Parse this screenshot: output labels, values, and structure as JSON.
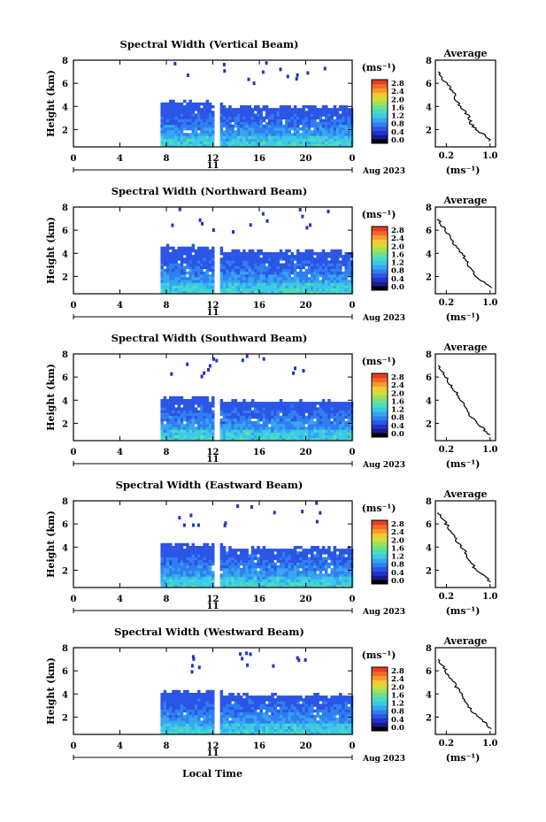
{
  "figure": {
    "bottom_xlabel": "Local Time",
    "date_label": "Aug 2023",
    "day_label": "11",
    "colorbar_unit": "(ms⁻¹)",
    "avg_title": "Average",
    "avg_xlabel": "(ms⁻¹)",
    "ylabel": "Height (km)"
  },
  "colors": {
    "colormap": [
      "#000000",
      "#1a1a8c",
      "#2332c8",
      "#2a55e6",
      "#2f7ef0",
      "#35a6f0",
      "#3cc8e6",
      "#48dcc0",
      "#6ee08c",
      "#a0e05a",
      "#d2dc3c",
      "#f5c832",
      "#f59a2d",
      "#f06a28",
      "#e63c23"
    ]
  },
  "chart_data": [
    {
      "type": "heatmap",
      "title": "Spectral Width (Vertical Beam)",
      "xticks": [
        "0",
        "4",
        "8",
        "12",
        "16",
        "20",
        "0"
      ],
      "xlim": [
        0,
        24
      ],
      "yticks": [
        "2",
        "4",
        "6",
        "8"
      ],
      "ylim": [
        0.5,
        8
      ],
      "colorbar_ticks": [
        "0.0",
        "0.4",
        "0.8",
        "1.2",
        "1.6",
        "2.0",
        "2.4",
        "2.8"
      ],
      "colorbar_range": [
        0,
        3.0
      ],
      "data_start_hour": 7.5,
      "gap_hours": [
        12.35,
        12.6
      ],
      "top_height_km": 4.1,
      "avg": {
        "xticks": [
          "0.2",
          "1.0"
        ],
        "xlim": [
          0,
          1.1
        ],
        "yticks": [
          "2",
          "4",
          "6",
          "8"
        ],
        "ylim": [
          0.5,
          8
        ],
        "height": [
          1.0,
          1.5,
          2.0,
          2.5,
          3.0,
          3.5,
          4.0,
          4.5,
          5.0,
          5.5,
          6.0,
          6.5,
          7.0
        ],
        "width": [
          1.0,
          0.9,
          0.75,
          0.65,
          0.62,
          0.55,
          0.45,
          0.38,
          0.35,
          0.28,
          0.2,
          0.12,
          0.05
        ]
      }
    },
    {
      "type": "heatmap",
      "title": "Spectral Width (Northward Beam)",
      "xticks": [
        "0",
        "4",
        "8",
        "12",
        "16",
        "20",
        "0"
      ],
      "xlim": [
        0,
        24
      ],
      "yticks": [
        "2",
        "4",
        "6",
        "8"
      ],
      "ylim": [
        0.5,
        8
      ],
      "colorbar_ticks": [
        "0.0",
        "0.4",
        "0.8",
        "1.2",
        "1.6",
        "2.0",
        "2.4",
        "2.8"
      ],
      "colorbar_range": [
        0,
        3.0
      ],
      "data_start_hour": 7.5,
      "gap_hours": [
        12.35,
        12.6
      ],
      "top_height_km": 4.3,
      "avg": {
        "xticks": [
          "0.2",
          "1.0"
        ],
        "xlim": [
          0,
          1.1
        ],
        "yticks": [
          "2",
          "4",
          "6",
          "8"
        ],
        "ylim": [
          0.5,
          8
        ],
        "height": [
          1.0,
          1.5,
          2.0,
          2.5,
          3.0,
          3.5,
          4.0,
          4.5,
          5.0,
          5.5,
          6.0,
          6.5,
          7.0
        ],
        "width": [
          1.0,
          0.9,
          0.72,
          0.7,
          0.6,
          0.55,
          0.48,
          0.4,
          0.32,
          0.25,
          0.18,
          0.1,
          0.05
        ]
      }
    },
    {
      "type": "heatmap",
      "title": "Spectral Width (Southward Beam)",
      "xticks": [
        "0",
        "4",
        "8",
        "12",
        "16",
        "20",
        "0"
      ],
      "xlim": [
        0,
        24
      ],
      "yticks": [
        "2",
        "4",
        "6",
        "8"
      ],
      "ylim": [
        0.5,
        8
      ],
      "colorbar_ticks": [
        "0.0",
        "0.4",
        "0.8",
        "1.2",
        "1.6",
        "2.0",
        "2.4",
        "2.8"
      ],
      "colorbar_range": [
        0,
        3.0
      ],
      "data_start_hour": 7.5,
      "gap_hours": [
        12.35,
        12.6
      ],
      "top_height_km": 4.0,
      "avg": {
        "xticks": [
          "0.2",
          "1.0"
        ],
        "xlim": [
          0,
          1.1
        ],
        "yticks": [
          "2",
          "4",
          "6",
          "8"
        ],
        "ylim": [
          0.5,
          8
        ],
        "height": [
          1.0,
          1.5,
          2.0,
          2.5,
          3.0,
          3.5,
          4.0,
          4.5,
          5.0,
          5.5,
          6.0,
          6.5,
          7.0
        ],
        "width": [
          1.0,
          0.88,
          0.76,
          0.66,
          0.6,
          0.54,
          0.47,
          0.4,
          0.33,
          0.26,
          0.18,
          0.12,
          0.05
        ]
      }
    },
    {
      "type": "heatmap",
      "title": "Spectral Width (Eastward Beam)",
      "xticks": [
        "0",
        "4",
        "8",
        "12",
        "16",
        "20",
        "0"
      ],
      "xlim": [
        0,
        24
      ],
      "yticks": [
        "2",
        "4",
        "6",
        "8"
      ],
      "ylim": [
        0.5,
        8
      ],
      "colorbar_ticks": [
        "0.0",
        "0.4",
        "0.8",
        "1.2",
        "1.6",
        "2.0",
        "2.4",
        "2.8"
      ],
      "colorbar_range": [
        0,
        3.0
      ],
      "data_start_hour": 7.5,
      "gap_hours": [
        12.35,
        12.6
      ],
      "top_height_km": 4.0,
      "avg": {
        "xticks": [
          "0.2",
          "1.0"
        ],
        "xlim": [
          0,
          1.1
        ],
        "yticks": [
          "2",
          "4",
          "6",
          "8"
        ],
        "ylim": [
          0.5,
          8
        ],
        "height": [
          1.0,
          1.5,
          2.0,
          2.5,
          3.0,
          3.5,
          4.0,
          4.5,
          5.0,
          5.5,
          6.0,
          6.5,
          7.0
        ],
        "width": [
          1.0,
          0.9,
          0.74,
          0.68,
          0.61,
          0.56,
          0.46,
          0.4,
          0.34,
          0.27,
          0.2,
          0.12,
          0.05
        ]
      }
    },
    {
      "type": "heatmap",
      "title": "Spectral Width (Westward Beam)",
      "xticks": [
        "0",
        "4",
        "8",
        "12",
        "16",
        "20",
        "0"
      ],
      "xlim": [
        0,
        24
      ],
      "yticks": [
        "2",
        "4",
        "6",
        "8"
      ],
      "ylim": [
        0.5,
        8
      ],
      "colorbar_ticks": [
        "0.0",
        "0.4",
        "0.8",
        "1.2",
        "1.6",
        "2.0",
        "2.4",
        "2.8"
      ],
      "colorbar_range": [
        0,
        3.0
      ],
      "data_start_hour": 7.5,
      "gap_hours": [
        12.35,
        12.6
      ],
      "top_height_km": 4.0,
      "avg": {
        "xticks": [
          "0.2",
          "1.0"
        ],
        "xlim": [
          0,
          1.1
        ],
        "yticks": [
          "2",
          "4",
          "6",
          "8"
        ],
        "ylim": [
          0.5,
          8
        ],
        "height": [
          1.0,
          1.5,
          2.0,
          2.5,
          3.0,
          3.5,
          4.0,
          4.5,
          5.0,
          5.5,
          6.0,
          6.5,
          7.0
        ],
        "width": [
          1.0,
          0.9,
          0.77,
          0.67,
          0.6,
          0.53,
          0.47,
          0.4,
          0.33,
          0.26,
          0.19,
          0.12,
          0.05
        ]
      }
    }
  ]
}
